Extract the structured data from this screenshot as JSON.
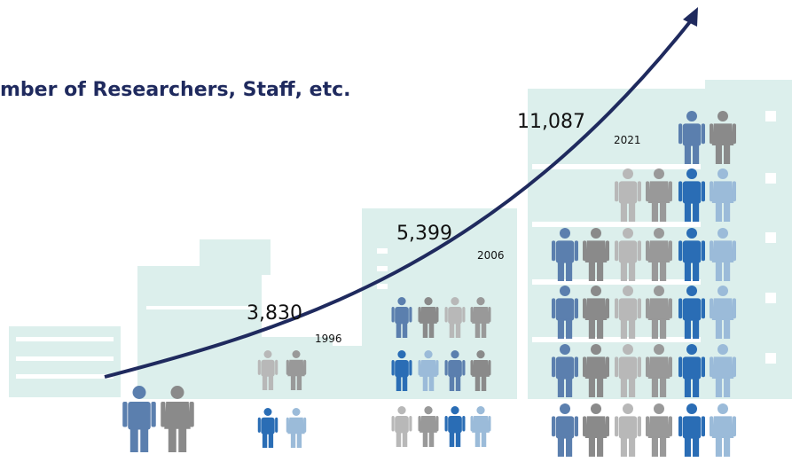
{
  "chart_data": {
    "type": "pictogram",
    "title": "mber of Researchers, Staff, etc.",
    "categories": [
      "1996",
      "2006",
      "2021"
    ],
    "values": [
      3830,
      5399,
      11087
    ],
    "value_labels": [
      "3,830",
      "5,399",
      "11,087"
    ],
    "color": "#1f2a5e"
  }
}
